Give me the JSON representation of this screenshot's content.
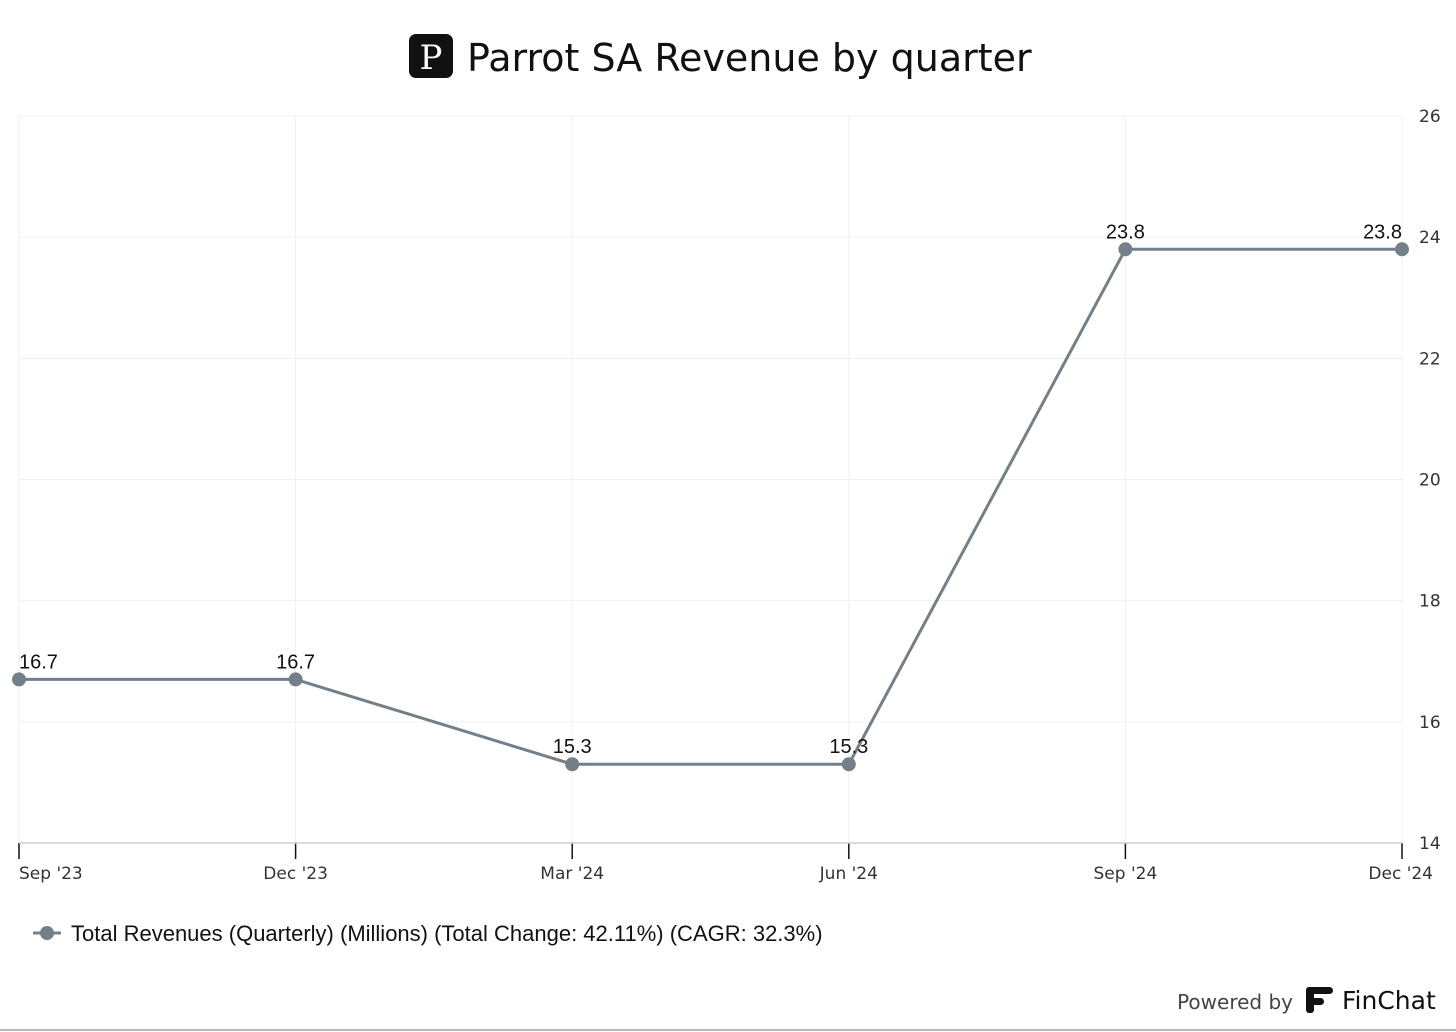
{
  "header": {
    "logo_letter": "P",
    "title": "Parrot SA Revenue by quarter"
  },
  "chart_data": {
    "type": "line",
    "title": "Parrot SA Revenue by quarter",
    "categories": [
      "Sep '23",
      "Dec '23",
      "Mar '24",
      "Jun '24",
      "Sep '24",
      "Dec '24"
    ],
    "series": [
      {
        "name": "Total Revenues (Quarterly) (Millions) (Total Change: 42.11%) (CAGR: 32.3%)",
        "values": [
          16.7,
          16.7,
          15.3,
          15.3,
          23.8,
          23.8
        ],
        "labels": [
          "16.7",
          "16.7",
          "15.3",
          "15.3",
          "23.8",
          "23.8"
        ]
      }
    ],
    "ylim": [
      14,
      26
    ],
    "yticks": [
      "14",
      "16",
      "18",
      "20",
      "22",
      "24",
      "26"
    ],
    "y_axis_side": "right",
    "grid": true,
    "legend_position": "bottom-left",
    "series_color": "#748089"
  },
  "footer": {
    "powered_by": "Powered by",
    "brand": "FinChat"
  }
}
